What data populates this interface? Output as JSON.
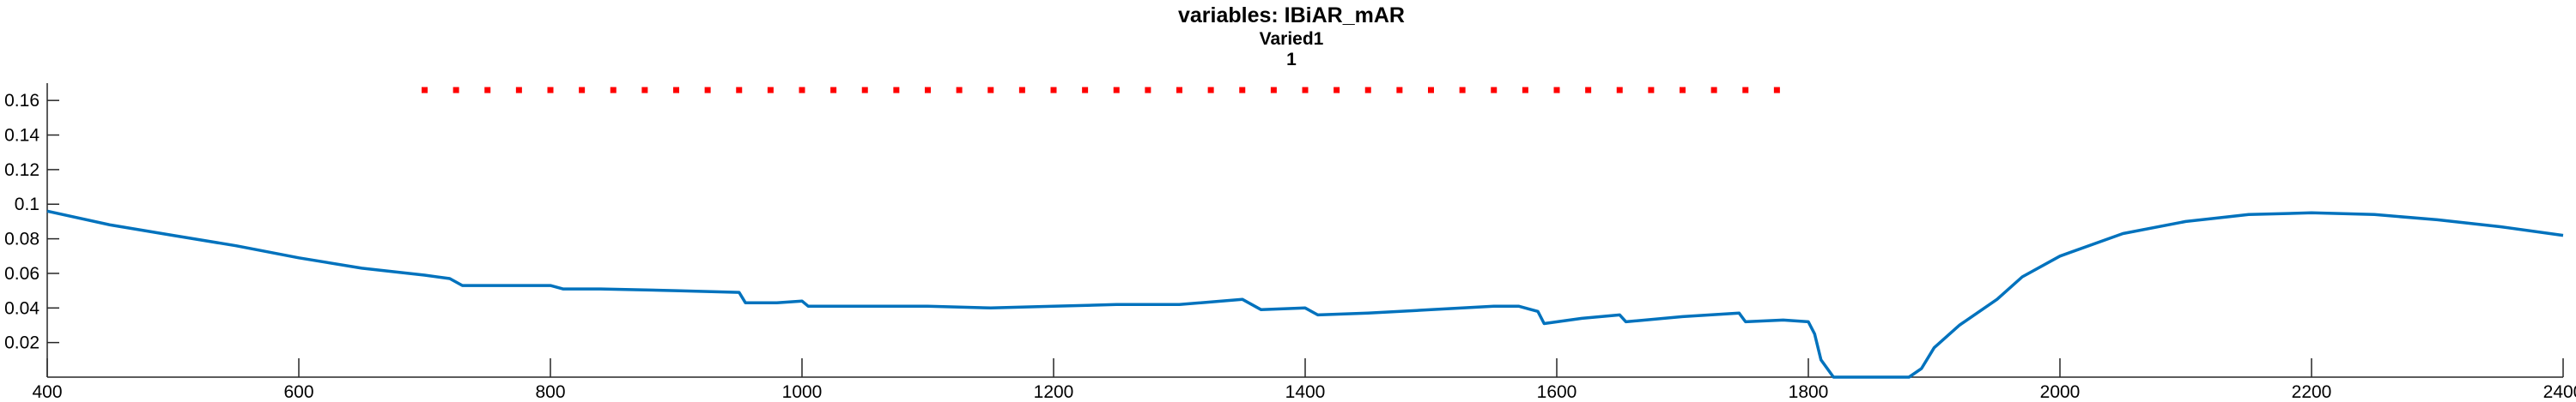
{
  "chart_data": {
    "type": "line",
    "title": "variables: IBiAR_mAR",
    "subtitle": "Varied1",
    "subtitle2": "1",
    "xlim": [
      400,
      2400
    ],
    "ylim": [
      0,
      0.17
    ],
    "xticks": [
      400,
      600,
      800,
      1000,
      1200,
      1400,
      1600,
      1800,
      2000,
      2200,
      2400
    ],
    "yticks": [
      0.02,
      0.04,
      0.06,
      0.08,
      0.1,
      0.12,
      0.14,
      0.16
    ],
    "xtick_labels": [
      "400",
      "600",
      "800",
      "1000",
      "1200",
      "1400",
      "1600",
      "1800",
      "2000",
      "2200",
      "2400"
    ],
    "ytick_labels": [
      "0.02",
      "0.04",
      "0.06",
      "0.08",
      "0.1",
      "0.12",
      "0.14",
      "0.16"
    ],
    "grid": false,
    "series": [
      {
        "color": "#0072BD",
        "style": "line",
        "x": [
          400,
          450,
          500,
          550,
          600,
          650,
          700,
          720,
          730,
          760,
          800,
          810,
          840,
          900,
          950,
          955,
          980,
          1000,
          1005,
          1050,
          1100,
          1150,
          1200,
          1250,
          1300,
          1350,
          1365,
          1400,
          1410,
          1450,
          1500,
          1550,
          1570,
          1585,
          1590,
          1620,
          1650,
          1655,
          1700,
          1745,
          1750,
          1780,
          1800,
          1805,
          1810,
          1820,
          1860,
          1880,
          1890,
          1900,
          1920,
          1950,
          1970,
          2000,
          2050,
          2100,
          2150,
          2200,
          2250,
          2300,
          2350,
          2400
        ],
        "y": [
          0.096,
          0.088,
          0.082,
          0.076,
          0.069,
          0.063,
          0.059,
          0.057,
          0.053,
          0.053,
          0.053,
          0.051,
          0.051,
          0.05,
          0.049,
          0.043,
          0.043,
          0.044,
          0.041,
          0.041,
          0.041,
          0.04,
          0.041,
          0.042,
          0.042,
          0.045,
          0.039,
          0.04,
          0.036,
          0.037,
          0.039,
          0.041,
          0.041,
          0.038,
          0.031,
          0.034,
          0.036,
          0.032,
          0.035,
          0.037,
          0.032,
          0.033,
          0.032,
          0.025,
          0.01,
          0.0,
          0.0,
          0.0,
          0.005,
          0.017,
          0.03,
          0.045,
          0.058,
          0.07,
          0.083,
          0.09,
          0.094,
          0.095,
          0.094,
          0.091,
          0.087,
          0.082
        ]
      },
      {
        "color": "#ff0000",
        "style": "dots",
        "x": [
          700,
          725,
          750,
          775,
          800,
          825,
          850,
          875,
          900,
          925,
          950,
          975,
          1000,
          1025,
          1050,
          1075,
          1100,
          1125,
          1150,
          1175,
          1200,
          1225,
          1250,
          1275,
          1300,
          1325,
          1350,
          1375,
          1400,
          1425,
          1450,
          1475,
          1500,
          1525,
          1550,
          1575,
          1600,
          1625,
          1650,
          1675,
          1700,
          1725,
          1750,
          1775
        ],
        "y": [
          0.166,
          0.166,
          0.166,
          0.166,
          0.166,
          0.166,
          0.166,
          0.166,
          0.166,
          0.166,
          0.166,
          0.166,
          0.166,
          0.166,
          0.166,
          0.166,
          0.166,
          0.166,
          0.166,
          0.166,
          0.166,
          0.166,
          0.166,
          0.166,
          0.166,
          0.166,
          0.166,
          0.166,
          0.166,
          0.166,
          0.166,
          0.166,
          0.166,
          0.166,
          0.166,
          0.166,
          0.166,
          0.166,
          0.166,
          0.166,
          0.166,
          0.166,
          0.166,
          0.166
        ]
      }
    ]
  }
}
